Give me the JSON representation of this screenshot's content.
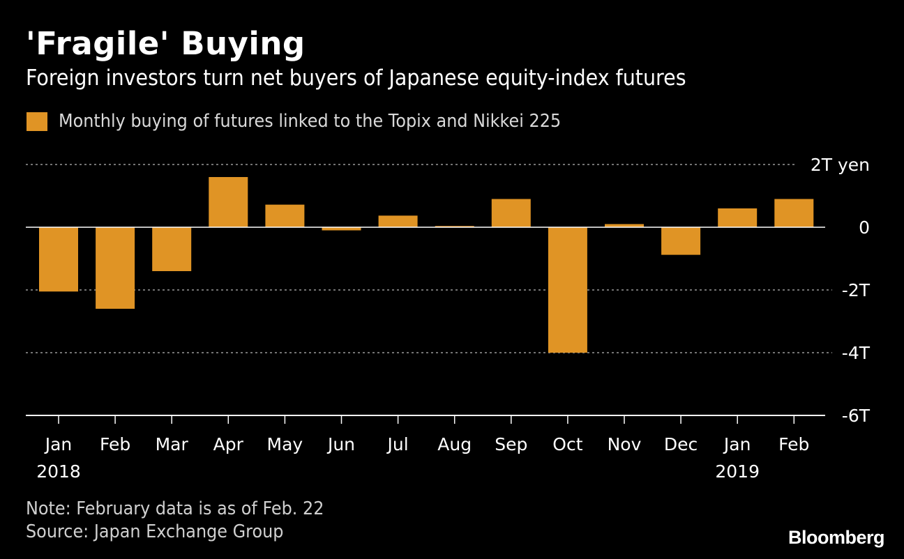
{
  "header": {
    "title": "'Fragile' Buying",
    "subtitle": "Foreign investors turn net buyers of Japanese equity-index futures"
  },
  "legend": {
    "label": "Monthly buying of futures linked to the Topix and Nikkei 225",
    "color": "#e09425"
  },
  "chart_data": {
    "type": "bar",
    "categories": [
      "Jan",
      "Feb",
      "Mar",
      "Apr",
      "May",
      "Jun",
      "Jul",
      "Aug",
      "Sep",
      "Oct",
      "Nov",
      "Dec",
      "Jan",
      "Feb"
    ],
    "year_labels": [
      {
        "category_index": 0,
        "text": "2018"
      },
      {
        "category_index": 12,
        "text": "2019"
      }
    ],
    "series": [
      {
        "name": "Monthly buying of futures linked to the Topix and Nikkei 225",
        "unit": "trillion yen",
        "values": [
          -2.05,
          -2.6,
          -1.4,
          1.6,
          0.72,
          -0.1,
          0.37,
          0.04,
          0.9,
          -4.0,
          0.1,
          -0.88,
          0.6,
          0.9
        ]
      }
    ],
    "ylim": [
      -6,
      2
    ],
    "yticks": [
      {
        "value": 2,
        "label": "2T yen"
      },
      {
        "value": 0,
        "label": "0"
      },
      {
        "value": -2,
        "label": "-2T"
      },
      {
        "value": -4,
        "label": "-4T"
      },
      {
        "value": -6,
        "label": "-6T"
      }
    ],
    "bar_color": "#e09425",
    "grid": true,
    "legend_position": "top-left"
  },
  "footer": {
    "note": "Note: February data is as of Feb. 22",
    "source": "Source: Japan Exchange Group",
    "brand": "Bloomberg"
  }
}
